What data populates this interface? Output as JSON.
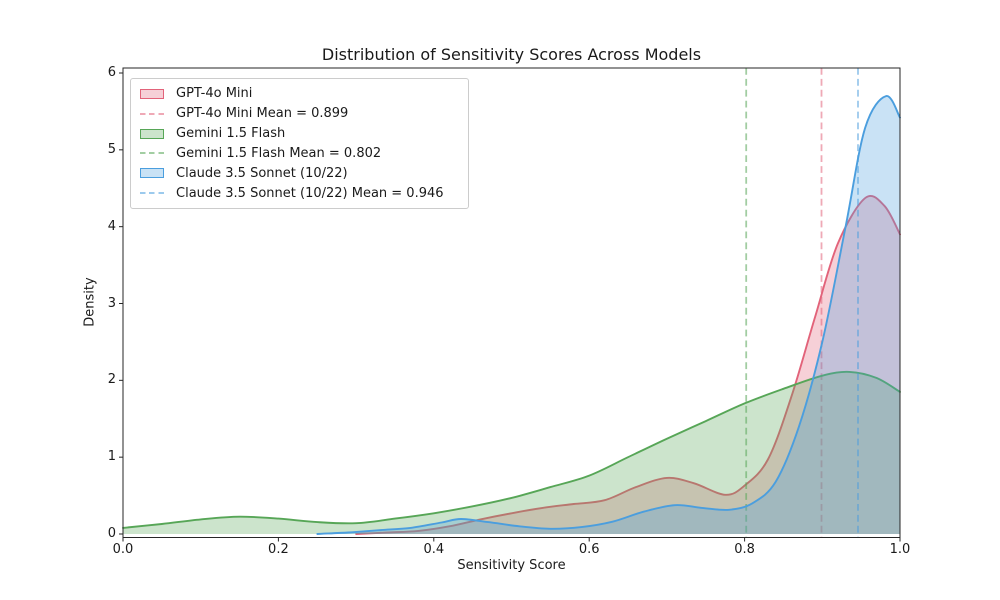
{
  "chart_data": {
    "type": "area",
    "subtype": "kde-density",
    "title": "Distribution of Sensitivity Scores Across Models",
    "xlabel": "Sensitivity Score",
    "ylabel": "Density",
    "xlim": [
      0.0,
      1.0
    ],
    "ylim": [
      0,
      6
    ],
    "grid": false,
    "legend_position": "upper left",
    "x_ticks": [
      {
        "value": 0.0,
        "label": "0.0"
      },
      {
        "value": 0.2,
        "label": "0.2"
      },
      {
        "value": 0.4,
        "label": "0.4"
      },
      {
        "value": 0.6,
        "label": "0.6"
      },
      {
        "value": 0.8,
        "label": "0.8"
      },
      {
        "value": 1.0,
        "label": "1.0"
      }
    ],
    "y_ticks": [
      {
        "value": 0,
        "label": "0"
      },
      {
        "value": 1,
        "label": "1"
      },
      {
        "value": 2,
        "label": "2"
      },
      {
        "value": 3,
        "label": "3"
      },
      {
        "value": 4,
        "label": "4"
      },
      {
        "value": 5,
        "label": "5"
      },
      {
        "value": 6,
        "label": "6"
      }
    ],
    "series": [
      {
        "name": "GPT-4o Mini",
        "mean": 0.899,
        "color": "#e2637a",
        "fill_opacity": 0.3,
        "mean_line_opacity": 0.55,
        "line_style": "solid",
        "mean_line_style": "dashed",
        "points": [
          [
            0.3,
            0.0
          ],
          [
            0.34,
            0.02
          ],
          [
            0.38,
            0.04
          ],
          [
            0.42,
            0.1
          ],
          [
            0.46,
            0.19
          ],
          [
            0.5,
            0.27
          ],
          [
            0.54,
            0.34
          ],
          [
            0.58,
            0.39
          ],
          [
            0.62,
            0.44
          ],
          [
            0.66,
            0.61
          ],
          [
            0.7,
            0.73
          ],
          [
            0.735,
            0.66
          ],
          [
            0.775,
            0.51
          ],
          [
            0.8,
            0.63
          ],
          [
            0.83,
            0.97
          ],
          [
            0.86,
            1.78
          ],
          [
            0.89,
            2.8
          ],
          [
            0.92,
            3.78
          ],
          [
            0.955,
            4.37
          ],
          [
            0.98,
            4.27
          ],
          [
            1.0,
            3.9
          ]
        ]
      },
      {
        "name": "Gemini 1.5 Flash",
        "mean": 0.802,
        "color": "#57a657",
        "fill_opacity": 0.3,
        "mean_line_opacity": 0.55,
        "line_style": "solid",
        "mean_line_style": "dashed",
        "points": [
          [
            0.0,
            0.08
          ],
          [
            0.05,
            0.13
          ],
          [
            0.1,
            0.19
          ],
          [
            0.15,
            0.225
          ],
          [
            0.2,
            0.2
          ],
          [
            0.25,
            0.155
          ],
          [
            0.3,
            0.14
          ],
          [
            0.35,
            0.2
          ],
          [
            0.4,
            0.27
          ],
          [
            0.45,
            0.36
          ],
          [
            0.5,
            0.47
          ],
          [
            0.55,
            0.61
          ],
          [
            0.6,
            0.76
          ],
          [
            0.65,
            1.0
          ],
          [
            0.7,
            1.24
          ],
          [
            0.75,
            1.47
          ],
          [
            0.8,
            1.7
          ],
          [
            0.85,
            1.89
          ],
          [
            0.9,
            2.06
          ],
          [
            0.935,
            2.11
          ],
          [
            0.97,
            2.03
          ],
          [
            1.0,
            1.85
          ]
        ]
      },
      {
        "name": "Claude 3.5 Sonnet (10/22)",
        "mean": 0.946,
        "color": "#4b9ede",
        "fill_opacity": 0.3,
        "mean_line_opacity": 0.55,
        "line_style": "solid",
        "mean_line_style": "dashed",
        "points": [
          [
            0.25,
            0.0
          ],
          [
            0.29,
            0.02
          ],
          [
            0.33,
            0.05
          ],
          [
            0.37,
            0.08
          ],
          [
            0.41,
            0.15
          ],
          [
            0.435,
            0.195
          ],
          [
            0.47,
            0.155
          ],
          [
            0.51,
            0.1
          ],
          [
            0.55,
            0.068
          ],
          [
            0.59,
            0.09
          ],
          [
            0.63,
            0.16
          ],
          [
            0.67,
            0.29
          ],
          [
            0.71,
            0.375
          ],
          [
            0.745,
            0.34
          ],
          [
            0.78,
            0.315
          ],
          [
            0.81,
            0.4
          ],
          [
            0.84,
            0.68
          ],
          [
            0.87,
            1.4
          ],
          [
            0.9,
            2.5
          ],
          [
            0.93,
            4.0
          ],
          [
            0.955,
            5.28
          ],
          [
            0.982,
            5.7
          ],
          [
            1.0,
            5.42
          ]
        ]
      }
    ]
  },
  "legend": {
    "items": [
      {
        "label": "GPT-4o Mini",
        "swatch": "patch",
        "series": 0
      },
      {
        "label": "GPT-4o Mini Mean = 0.899",
        "swatch": "dash",
        "series": 0
      },
      {
        "label": "Gemini 1.5 Flash",
        "swatch": "patch",
        "series": 1
      },
      {
        "label": "Gemini 1.5 Flash Mean = 0.802",
        "swatch": "dash",
        "series": 1
      },
      {
        "label": "Claude 3.5 Sonnet (10/22)",
        "swatch": "patch",
        "series": 2
      },
      {
        "label": "Claude 3.5 Sonnet (10/22) Mean = 0.946",
        "swatch": "dash",
        "series": 2
      }
    ]
  },
  "style": {
    "spine_color": "#262626",
    "text_color": "#1a1a1a",
    "background": "#ffffff"
  }
}
